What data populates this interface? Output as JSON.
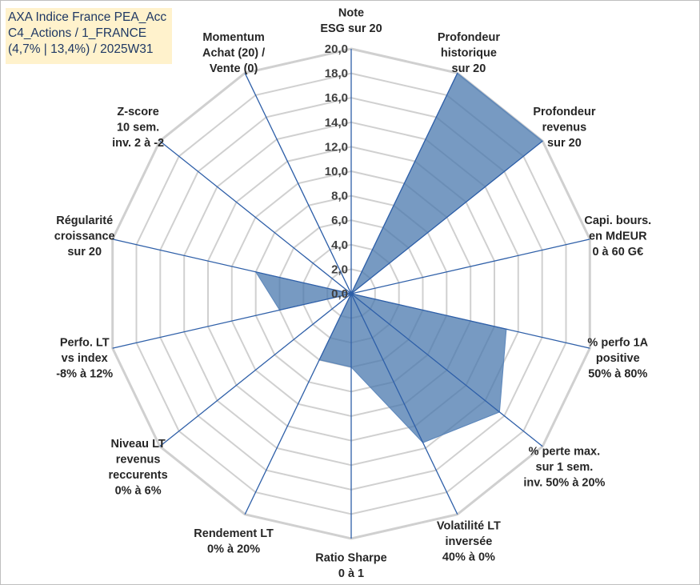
{
  "title_lines": [
    "AXA Indice France PEA_Acc",
    "C4_Actions / 1_FRANCE",
    "(4,7% | 13,4%) / 2025W31"
  ],
  "chart_data": {
    "type": "radar",
    "title": "AXA Indice France PEA_Acc C4_Actions / 1_FRANCE (4,7% | 13,4%) / 2025W31",
    "axes": [
      [
        "Note",
        "ESG sur 20"
      ],
      [
        "Profondeur",
        "historique",
        "sur 20"
      ],
      [
        "Profondeur",
        "revenus",
        "sur 20"
      ],
      [
        "Capi. bours.",
        "en MdEUR",
        "0 à 60 G€"
      ],
      [
        "% perfo 1A",
        "positive",
        "50% à 80%"
      ],
      [
        "% perte max.",
        "sur 1 sem.",
        "inv. 50% à 20%"
      ],
      [
        "Volatilité LT",
        "inversée",
        "40% à 0%"
      ],
      [
        "Ratio Sharpe",
        "0 à 1"
      ],
      [
        "Rendement LT",
        "0% à 20%"
      ],
      [
        "Niveau LT",
        "revenus",
        "reccurents",
        "0% à 6%"
      ],
      [
        "Perfo. LT",
        "vs index",
        "-8% à 12%"
      ],
      [
        "Régularité",
        "croissance",
        "sur 20"
      ],
      [
        "Z-score",
        "10 sem.",
        "inv. 2 à -2"
      ],
      [
        "Momentum",
        "Achat (20) /",
        "Vente (0)"
      ]
    ],
    "values": [
      0,
      20,
      20,
      0,
      13,
      15.5,
      13.5,
      6,
      6,
      0,
      6,
      8,
      0,
      14
    ],
    "rmin": 0,
    "rmax": 20,
    "ticks": [
      "0,0",
      "2,0",
      "4,0",
      "6,0",
      "8,0",
      "10,0",
      "12,0",
      "14,0",
      "16,0",
      "18,0",
      "20,0"
    ],
    "grid": true,
    "colors": {
      "fill": "#4a78ad",
      "stroke": "#5b86bb",
      "grid": "#d0d0d0",
      "spoke": "#2e5fa8",
      "label": "#262626",
      "tick": "#404040"
    }
  }
}
